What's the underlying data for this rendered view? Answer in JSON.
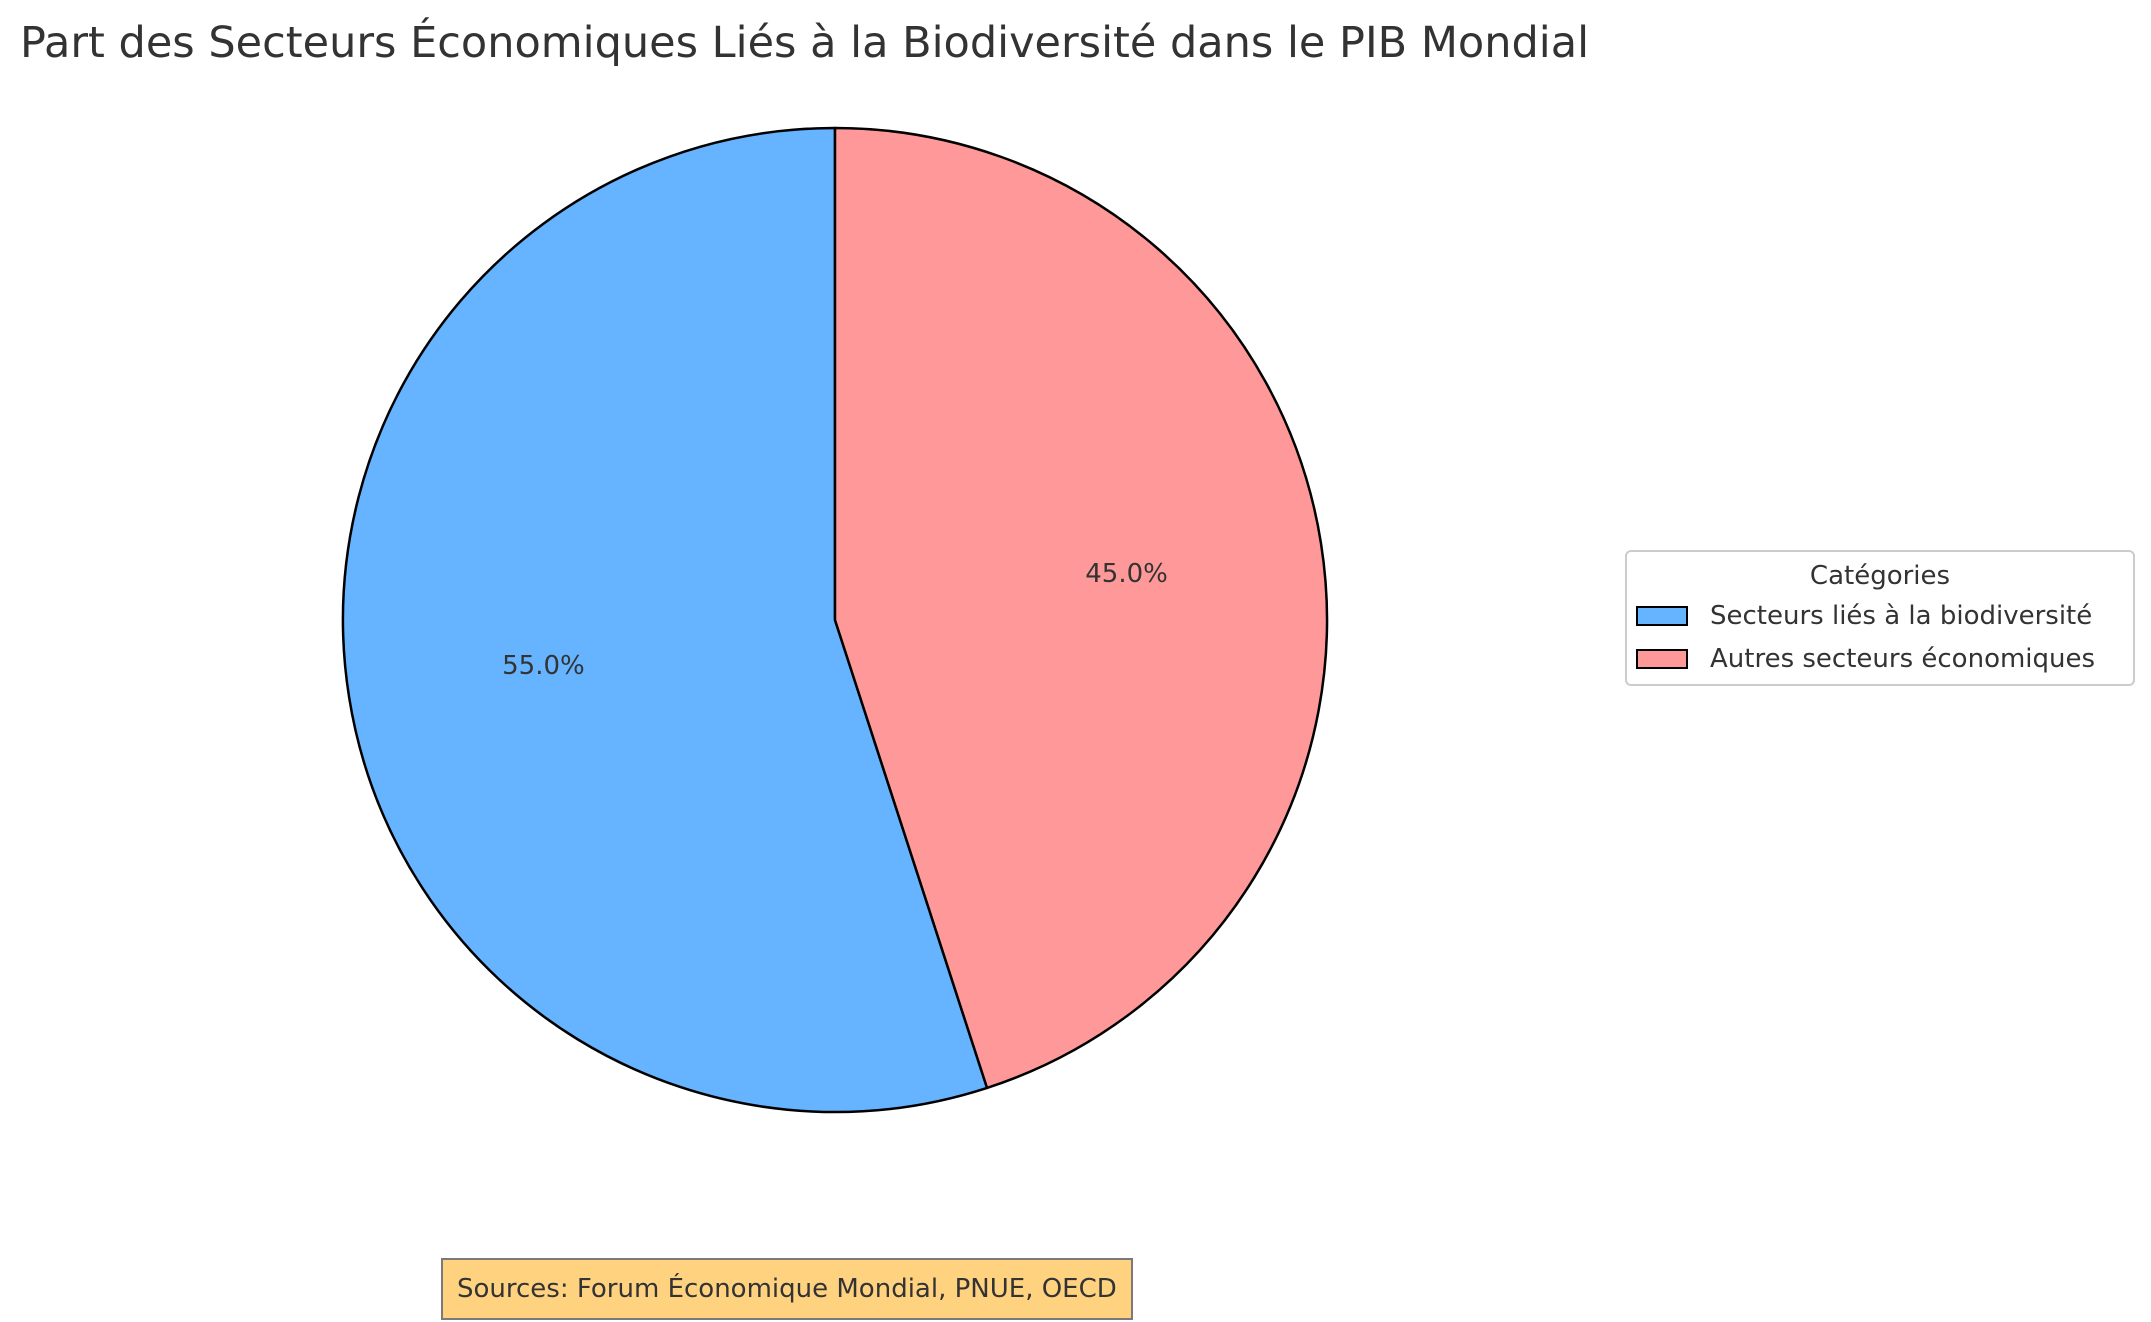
{
  "title": "Part des Secteurs Économiques Liés à la Biodiversité dans le PIB Mondial",
  "chart_data": {
    "type": "pie",
    "title": "Part des Secteurs Économiques Liés à la Biodiversité dans le PIB Mondial",
    "categories": [
      "Secteurs liés à la biodiversité",
      "Autres secteurs économiques"
    ],
    "values": [
      55.0,
      45.0
    ],
    "data_labels": [
      "55.0%",
      "45.0%"
    ],
    "colors": [
      "#66b3ff",
      "#ff9999"
    ],
    "edge_color": "#000000",
    "start_angle_deg": 90,
    "direction": "counterclockwise",
    "legend": {
      "title": "Catégories",
      "placement": "center-right",
      "items": [
        {
          "label": "Secteurs liés à la biodiversité",
          "color": "#66b3ff"
        },
        {
          "label": "Autres secteurs économiques",
          "color": "#ff9999"
        }
      ]
    }
  },
  "annotation": {
    "sources": "Sources: Forum Économique Mondial, PNUE, OECD",
    "background": "#ffd280"
  }
}
